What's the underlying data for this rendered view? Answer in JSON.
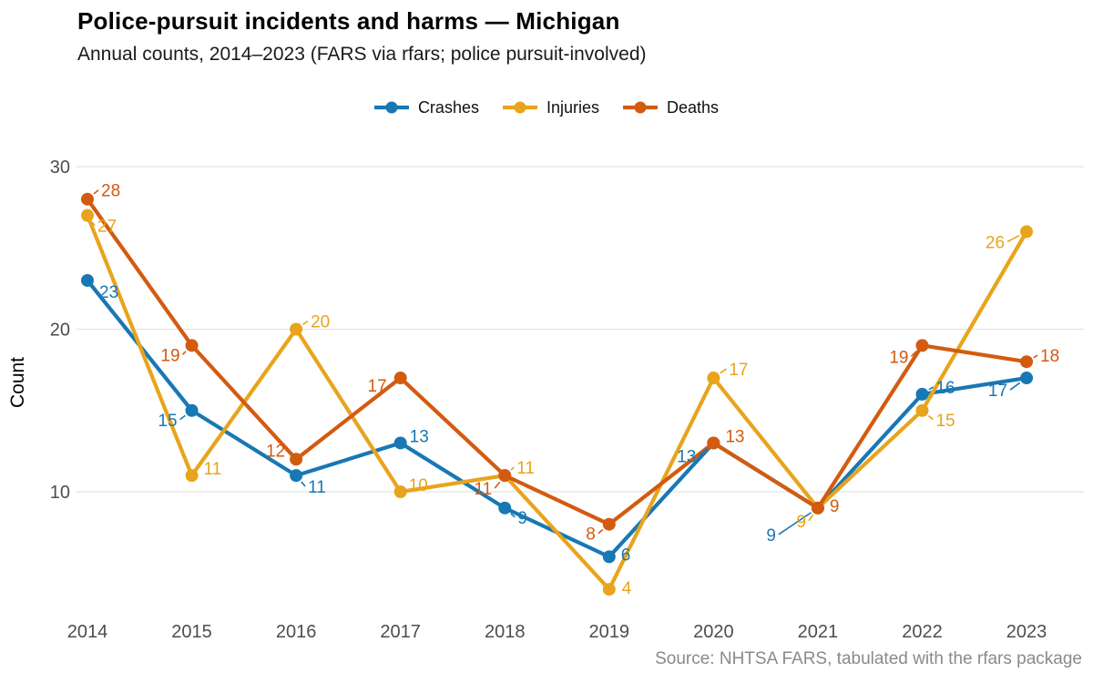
{
  "chart_data": {
    "type": "line",
    "title": "Police-pursuit incidents and harms — Michigan",
    "subtitle": "Annual counts, 2014–2023 (FARS via rfars; police pursuit-involved)",
    "caption": "Source: NHTSA FARS, tabulated with the rfars package",
    "xlabel": "",
    "ylabel": "Count",
    "x": [
      2014,
      2015,
      2016,
      2017,
      2018,
      2019,
      2020,
      2021,
      2022,
      2023
    ],
    "yticks": [
      10,
      20,
      30
    ],
    "ylim": [
      2,
      31
    ],
    "grid": "horizontal-only",
    "legend_position": "top-center",
    "point_labels": true,
    "axis_text_color": "#4D4D4D",
    "grid_color": "#E4E4E4",
    "caption_color": "#8A8A8A",
    "series": [
      {
        "name": "Crashes",
        "color": "#1878B4",
        "values": [
          23,
          15,
          11,
          13,
          9,
          6,
          13,
          9,
          16,
          17
        ]
      },
      {
        "name": "Injuries",
        "color": "#E8A41C",
        "values": [
          27,
          11,
          20,
          10,
          11,
          4,
          17,
          9,
          15,
          26
        ]
      },
      {
        "name": "Deaths",
        "color": "#D35B10",
        "values": [
          28,
          19,
          12,
          17,
          11,
          8,
          13,
          9,
          19,
          18
        ]
      }
    ],
    "label_layout": {
      "Crashes": [
        [
          13,
          19,
          "s"
        ],
        [
          -16,
          17,
          "e"
        ],
        [
          13,
          19,
          "s"
        ],
        [
          10,
          -1,
          "s"
        ],
        [
          14,
          17,
          "s"
        ],
        [
          13,
          4,
          "s"
        ],
        [
          -19,
          21,
          "e"
        ],
        [
          -46,
          36,
          "e"
        ],
        [
          15,
          -1,
          "s"
        ],
        [
          -21,
          20,
          "e"
        ]
      ],
      "Injuries": [
        [
          11,
          18,
          "s"
        ],
        [
          13,
          -1,
          "s"
        ],
        [
          16,
          -2,
          "s"
        ],
        [
          9,
          -1,
          "s"
        ],
        [
          13,
          -2,
          "s"
        ],
        [
          14,
          5,
          "s"
        ],
        [
          17,
          -3,
          "s"
        ],
        [
          -13,
          21,
          "e"
        ],
        [
          15,
          17,
          "s"
        ],
        [
          -24,
          18,
          "e"
        ]
      ],
      "Deaths": [
        [
          15,
          -3,
          "s"
        ],
        [
          -13,
          17,
          "e"
        ],
        [
          -12,
          -3,
          "e"
        ],
        [
          -15,
          15,
          "e"
        ],
        [
          -14,
          21,
          "e"
        ],
        [
          -15,
          17,
          "e"
        ],
        [
          13,
          -1,
          "s"
        ],
        [
          13,
          4,
          "s"
        ],
        [
          -15,
          19,
          "e"
        ],
        [
          15,
          0,
          "s"
        ]
      ]
    }
  }
}
